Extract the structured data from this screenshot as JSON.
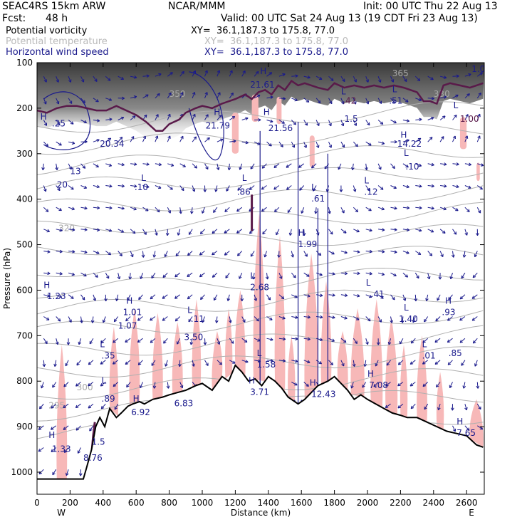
{
  "header": {
    "model": "SEAC4RS 15km ARW",
    "org": "NCAR/MMM",
    "init": "Init: 00 UTC Thu 22 Aug 13",
    "fcst_label": "Fcst:",
    "fcst_value": "48 h",
    "valid": "Valid: 00 UTC Sat 24 Aug 13 (19 CDT Fri 23 Aug 13)"
  },
  "legend": [
    {
      "field": "Potential vorticity",
      "xy": "XY=  36.1,187.3 to 175.8, 77.0",
      "color": "#000000"
    },
    {
      "field": "Potential temperature",
      "xy": "XY=  36.1,187.3 to 175.8, 77.0",
      "color": "#b9b9b9"
    },
    {
      "field": "Horizontal wind speed",
      "xy": "XY=  36.1,187.3 to 175.8, 77.0",
      "color": "#1a1a8c"
    }
  ],
  "colors": {
    "pv_contour": "#5a1a4a",
    "theta_contour": "#b0b0b0",
    "wind_arrows": "#1a1a8c",
    "pink_shading": "#f7b8b8",
    "stratosphere_shading": "#555555"
  },
  "chart_data": {
    "type": "cross-section",
    "xlabel": "Distance (km)",
    "ylabel": "Pressure (hPa)",
    "xlim": [
      0,
      2700
    ],
    "ylim": [
      1050,
      100
    ],
    "x_ticks": [
      0,
      200,
      400,
      600,
      800,
      1000,
      1200,
      1400,
      1600,
      1800,
      2000,
      2200,
      2400,
      2600
    ],
    "y_ticks": [
      100,
      200,
      300,
      400,
      500,
      600,
      700,
      800,
      900,
      1000
    ],
    "x_end_labels": [
      "W",
      "E"
    ],
    "terrain": [
      [
        0,
        1015
      ],
      [
        280,
        1015
      ],
      [
        300,
        990
      ],
      [
        330,
        950
      ],
      [
        355,
        900
      ],
      [
        380,
        880
      ],
      [
        410,
        900
      ],
      [
        440,
        860
      ],
      [
        480,
        880
      ],
      [
        510,
        870
      ],
      [
        550,
        855
      ],
      [
        580,
        850
      ],
      [
        620,
        845
      ],
      [
        650,
        850
      ],
      [
        700,
        840
      ],
      [
        760,
        835
      ],
      [
        800,
        830
      ],
      [
        850,
        825
      ],
      [
        900,
        820
      ],
      [
        960,
        810
      ],
      [
        1000,
        805
      ],
      [
        1060,
        820
      ],
      [
        1120,
        790
      ],
      [
        1160,
        800
      ],
      [
        1200,
        765
      ],
      [
        1240,
        780
      ],
      [
        1280,
        800
      ],
      [
        1320,
        795
      ],
      [
        1360,
        810
      ],
      [
        1400,
        790
      ],
      [
        1440,
        800
      ],
      [
        1480,
        815
      ],
      [
        1520,
        835
      ],
      [
        1580,
        850
      ],
      [
        1620,
        840
      ],
      [
        1660,
        825
      ],
      [
        1700,
        810
      ],
      [
        1760,
        800
      ],
      [
        1800,
        790
      ],
      [
        1840,
        805
      ],
      [
        1880,
        820
      ],
      [
        1920,
        840
      ],
      [
        1960,
        830
      ],
      [
        2000,
        840
      ],
      [
        2050,
        850
      ],
      [
        2100,
        860
      ],
      [
        2150,
        870
      ],
      [
        2200,
        875
      ],
      [
        2240,
        880
      ],
      [
        2300,
        880
      ],
      [
        2360,
        890
      ],
      [
        2420,
        900
      ],
      [
        2480,
        910
      ],
      [
        2540,
        915
      ],
      [
        2600,
        920
      ],
      [
        2660,
        940
      ],
      [
        2700,
        945
      ]
    ],
    "dynamic_tropopause": [
      [
        0,
        205
      ],
      [
        60,
        210
      ],
      [
        120,
        200
      ],
      [
        180,
        195
      ],
      [
        240,
        195
      ],
      [
        300,
        200
      ],
      [
        360,
        205
      ],
      [
        420,
        205
      ],
      [
        480,
        195
      ],
      [
        540,
        205
      ],
      [
        600,
        215
      ],
      [
        660,
        230
      ],
      [
        720,
        250
      ],
      [
        760,
        250
      ],
      [
        800,
        235
      ],
      [
        860,
        225
      ],
      [
        900,
        210
      ],
      [
        960,
        200
      ],
      [
        1000,
        195
      ],
      [
        1060,
        200
      ],
      [
        1120,
        190
      ],
      [
        1200,
        180
      ],
      [
        1260,
        170
      ],
      [
        1300,
        180
      ],
      [
        1340,
        165
      ],
      [
        1380,
        160
      ],
      [
        1420,
        170
      ],
      [
        1460,
        150
      ],
      [
        1500,
        160
      ],
      [
        1540,
        140
      ],
      [
        1580,
        150
      ],
      [
        1620,
        145
      ],
      [
        1660,
        150
      ],
      [
        1700,
        155
      ],
      [
        1760,
        160
      ],
      [
        1800,
        145
      ],
      [
        1860,
        155
      ],
      [
        1920,
        150
      ],
      [
        1980,
        155
      ],
      [
        2040,
        150
      ],
      [
        2100,
        155
      ],
      [
        2160,
        150
      ],
      [
        2220,
        155
      ],
      [
        2260,
        160
      ],
      [
        2300,
        165
      ],
      [
        2340,
        185
      ],
      [
        2380,
        185
      ],
      [
        2420,
        190
      ],
      [
        2460,
        150
      ],
      [
        2500,
        145
      ],
      [
        2560,
        150
      ],
      [
        2620,
        155
      ],
      [
        2700,
        145
      ]
    ],
    "theta_labels": [
      {
        "label": "350",
        "x": 800,
        "p": 175
      },
      {
        "label": "320",
        "x": 130,
        "p": 470
      },
      {
        "label": "300",
        "x": 240,
        "p": 820
      },
      {
        "label": "295",
        "x": 70,
        "p": 860
      },
      {
        "label": "365",
        "x": 2150,
        "p": 130
      },
      {
        "label": "330",
        "x": 2400,
        "p": 175
      }
    ],
    "annotations": [
      {
        "text": "H",
        "x": 1350,
        "p": 125,
        "color": "#1a1a8c"
      },
      {
        "text": "21.61",
        "x": 1290,
        "p": 155,
        "color": "#1a1a8c"
      },
      {
        "text": "H",
        "x": 1070,
        "p": 215,
        "color": "#1a1a8c"
      },
      {
        "text": "21.79",
        "x": 1020,
        "p": 245,
        "color": "#1a1a8c"
      },
      {
        "text": "H",
        "x": 1370,
        "p": 215,
        "color": "#1a1a8c"
      },
      {
        "text": "21.56",
        "x": 1400,
        "p": 250,
        "color": "#1a1a8c"
      },
      {
        "text": "20.34",
        "x": 380,
        "p": 285,
        "color": "#1a1a8c"
      },
      {
        "text": "H",
        "x": 20,
        "p": 225,
        "color": "#1a1a8c"
      },
      {
        "text": ".25",
        "x": 90,
        "p": 240,
        "color": "#1a1a8c"
      },
      {
        "text": "13",
        "x": 200,
        "p": 345,
        "color": "#1a1a8c"
      },
      {
        "text": "20",
        "x": 120,
        "p": 375,
        "color": "#1a1a8c"
      },
      {
        "text": "L",
        "x": 1840,
        "p": 170,
        "color": "#1a1a8c"
      },
      {
        "text": ".42",
        "x": 1850,
        "p": 190,
        "color": "#5a1a4a"
      },
      {
        "text": "L",
        "x": 2150,
        "p": 165,
        "color": "#1a1a8c"
      },
      {
        "text": ".51",
        "x": 2130,
        "p": 190,
        "color": "#1a1a8c"
      },
      {
        "text": "L",
        "x": 2520,
        "p": 200,
        "color": "#1a1a8c"
      },
      {
        "text": "1.00",
        "x": 2560,
        "p": 230,
        "color": "#5a1a4a"
      },
      {
        "text": "1.0",
        "x": 2630,
        "p": 120,
        "color": "#1a1a8c"
      },
      {
        "text": "H",
        "x": 2200,
        "p": 265,
        "color": "#1a1a8c"
      },
      {
        "text": "14.22",
        "x": 2180,
        "p": 285,
        "color": "#1a1a8c"
      },
      {
        "text": "L",
        "x": 2220,
        "p": 305,
        "color": "#1a1a8c"
      },
      {
        "text": ".10",
        "x": 2230,
        "p": 335,
        "color": "#1a1a8c"
      },
      {
        "text": "1.5",
        "x": 1860,
        "p": 230,
        "color": "#1a1a8c"
      },
      {
        "text": "L",
        "x": 1980,
        "p": 365,
        "color": "#1a1a8c"
      },
      {
        "text": ".12",
        "x": 1980,
        "p": 390,
        "color": "#1a1a8c"
      },
      {
        "text": "L",
        "x": 630,
        "p": 360,
        "color": "#1a1a8c"
      },
      {
        "text": ".10",
        "x": 590,
        "p": 380,
        "color": "#1a1a8c"
      },
      {
        "text": "L",
        "x": 1240,
        "p": 360,
        "color": "#1a1a8c"
      },
      {
        "text": ".86",
        "x": 1210,
        "p": 390,
        "color": "#1a1a8c"
      },
      {
        "text": "L",
        "x": 1660,
        "p": 380,
        "color": "#1a1a8c"
      },
      {
        "text": ".61",
        "x": 1660,
        "p": 405,
        "color": "#1a1a8c"
      },
      {
        "text": "H",
        "x": 1580,
        "p": 480,
        "color": "#1a1a8c"
      },
      {
        "text": "1.99",
        "x": 1580,
        "p": 505,
        "color": "#1a1a8c"
      },
      {
        "text": "L",
        "x": 1290,
        "p": 575,
        "color": "#1a1a8c"
      },
      {
        "text": "2.68",
        "x": 1290,
        "p": 600,
        "color": "#1a1a8c"
      },
      {
        "text": "H",
        "x": 40,
        "p": 595,
        "color": "#1a1a8c"
      },
      {
        "text": "1.23",
        "x": 60,
        "p": 620,
        "color": "#1a1a8c"
      },
      {
        "text": "H",
        "x": 540,
        "p": 630,
        "color": "#1a1a8c"
      },
      {
        "text": "1.01",
        "x": 520,
        "p": 655,
        "color": "#1a1a8c"
      },
      {
        "text": "1.07",
        "x": 490,
        "p": 685,
        "color": "#1a1a8c"
      },
      {
        "text": "L",
        "x": 910,
        "p": 650,
        "color": "#1a1a8c"
      },
      {
        "text": ".11",
        "x": 930,
        "p": 670,
        "color": "#1a1a8c"
      },
      {
        "text": "3.50",
        "x": 890,
        "p": 710,
        "color": "#1a1a8c"
      },
      {
        "text": "L",
        "x": 380,
        "p": 725,
        "color": "#1a1a8c"
      },
      {
        "text": ".35",
        "x": 390,
        "p": 750,
        "color": "#1a1a8c"
      },
      {
        "text": "L",
        "x": 1990,
        "p": 590,
        "color": "#1a1a8c"
      },
      {
        "text": ".41",
        "x": 2020,
        "p": 615,
        "color": "#1a1a8c"
      },
      {
        "text": "L",
        "x": 2220,
        "p": 645,
        "color": "#1a1a8c"
      },
      {
        "text": "1.40",
        "x": 2190,
        "p": 670,
        "color": "#1a1a8c"
      },
      {
        "text": "H",
        "x": 2470,
        "p": 630,
        "color": "#1a1a8c"
      },
      {
        "text": ".93",
        "x": 2450,
        "p": 655,
        "color": "#1a1a8c"
      },
      {
        "text": "L",
        "x": 2330,
        "p": 725,
        "color": "#1a1a8c"
      },
      {
        "text": ".01",
        "x": 2330,
        "p": 750,
        "color": "#1a1a8c"
      },
      {
        "text": ".85",
        "x": 2490,
        "p": 745,
        "color": "#1a1a8c"
      },
      {
        "text": "L",
        "x": 1330,
        "p": 745,
        "color": "#1a1a8c"
      },
      {
        "text": "1.58",
        "x": 1330,
        "p": 770,
        "color": "#1a1a8c"
      },
      {
        "text": "H",
        "x": 1280,
        "p": 805,
        "color": "#1a1a8c"
      },
      {
        "text": "3.71",
        "x": 1290,
        "p": 830,
        "color": "#1a1a8c"
      },
      {
        "text": "H",
        "x": 1650,
        "p": 810,
        "color": "#1a1a8c"
      },
      {
        "text": "12.43",
        "x": 1660,
        "p": 835,
        "color": "#1a1a8c"
      },
      {
        "text": "H",
        "x": 2000,
        "p": 790,
        "color": "#1a1a8c"
      },
      {
        "text": "7.08",
        "x": 2010,
        "p": 815,
        "color": "#1a1a8c"
      },
      {
        "text": "L",
        "x": 390,
        "p": 805,
        "color": "#1a1a8c"
      },
      {
        "text": ".89",
        "x": 390,
        "p": 845,
        "color": "#1a1a8c"
      },
      {
        "text": "H",
        "x": 580,
        "p": 845,
        "color": "#1a1a8c"
      },
      {
        "text": "6.92",
        "x": 570,
        "p": 875,
        "color": "#1a1a8c"
      },
      {
        "text": "6.83",
        "x": 830,
        "p": 855,
        "color": "#1a1a8c"
      },
      {
        "text": "H",
        "x": 2540,
        "p": 895,
        "color": "#1a1a8c"
      },
      {
        "text": "7.65",
        "x": 2540,
        "p": 920,
        "color": "#1a1a8c"
      },
      {
        "text": "H",
        "x": 70,
        "p": 925,
        "color": "#1a1a8c"
      },
      {
        "text": "1.33",
        "x": 90,
        "p": 955,
        "color": "#1a1a8c"
      },
      {
        "text": "1.5",
        "x": 330,
        "p": 940,
        "color": "#1a1a8c"
      },
      {
        "text": "8.76",
        "x": 280,
        "p": 975,
        "color": "#1a1a8c"
      }
    ]
  }
}
